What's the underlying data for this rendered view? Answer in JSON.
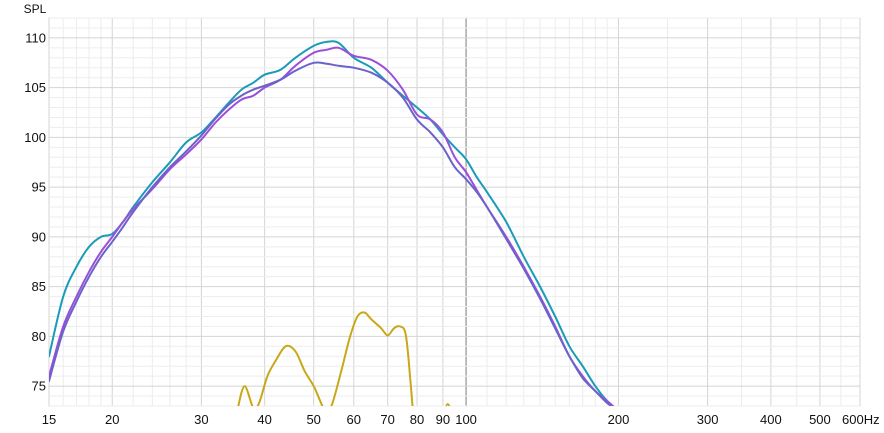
{
  "chart_data": {
    "type": "line",
    "title": "",
    "ylabel": "SPL",
    "xlabel": "",
    "x_scale": "log",
    "xlim": [
      15,
      600
    ],
    "ylim": [
      73,
      112
    ],
    "grid": true,
    "x_ticks": [
      15,
      20,
      30,
      40,
      50,
      60,
      70,
      80,
      90,
      100,
      200,
      300,
      400,
      500,
      600
    ],
    "x_tick_labels": [
      "15",
      "20",
      "30",
      "40",
      "50",
      "60",
      "70",
      "80",
      "90",
      "100",
      "200",
      "300",
      "400",
      "500",
      "600Hz"
    ],
    "y_ticks": [
      75,
      80,
      85,
      90,
      95,
      100,
      105,
      110
    ],
    "y_tick_labels": [
      "75",
      "80",
      "85",
      "90",
      "95",
      "100",
      "105",
      "110"
    ],
    "emphasized_x_gridline": 100,
    "series": [
      {
        "color": "#1a9bb8",
        "x": [
          15,
          16,
          17,
          18,
          19,
          20,
          21,
          22,
          24,
          26,
          28,
          30,
          32,
          34,
          36,
          38,
          40,
          43,
          46,
          50,
          53,
          56,
          60,
          65,
          70,
          75,
          80,
          85,
          90,
          95,
          100,
          105,
          110,
          120,
          130,
          140,
          150,
          160,
          170,
          180,
          190,
          200
        ],
        "y": [
          78,
          84,
          87,
          89,
          90,
          90.3,
          91.5,
          93,
          95.5,
          97.5,
          99.5,
          100.5,
          102,
          103.5,
          104.8,
          105.5,
          106.3,
          106.8,
          108,
          109.2,
          109.6,
          109.5,
          108,
          107,
          105.5,
          104.2,
          103,
          101.8,
          100.3,
          99,
          97.8,
          96,
          94.5,
          91.5,
          88,
          85,
          82,
          79,
          77,
          75,
          73.5,
          72.5
        ]
      },
      {
        "color": "#9b4fd9",
        "x": [
          15,
          16,
          17,
          18,
          19,
          20,
          21,
          22,
          24,
          26,
          28,
          30,
          32,
          34,
          36,
          38,
          40,
          43,
          46,
          50,
          53,
          56,
          60,
          65,
          70,
          75,
          80,
          85,
          90,
          95,
          100,
          105,
          110,
          120,
          130,
          140,
          150,
          160,
          170,
          180,
          190,
          200
        ],
        "y": [
          76,
          81,
          84,
          86.5,
          88.5,
          90,
          91.5,
          92.8,
          94.8,
          96.8,
          98.3,
          99.8,
          101.5,
          102.8,
          103.8,
          104.2,
          105,
          105.8,
          107.2,
          108.5,
          108.8,
          109,
          108.2,
          107.8,
          106.7,
          104.8,
          102.3,
          101.8,
          100.5,
          98,
          96.5,
          94.7,
          93,
          90,
          87,
          84,
          81,
          78,
          76,
          74.5,
          73.5,
          72.5
        ]
      },
      {
        "color": "#6a63c9",
        "x": [
          15,
          16,
          17,
          18,
          19,
          20,
          21,
          22,
          24,
          26,
          28,
          30,
          32,
          34,
          36,
          38,
          40,
          43,
          46,
          50,
          53,
          56,
          60,
          65,
          70,
          75,
          80,
          85,
          90,
          95,
          100,
          105,
          110,
          120,
          130,
          140,
          150,
          160,
          170,
          180,
          190,
          200
        ],
        "y": [
          75.5,
          80.5,
          83.5,
          86,
          88,
          89.5,
          91,
          92.5,
          95,
          97,
          98.6,
          100.2,
          101.9,
          103.3,
          104.2,
          104.8,
          105.2,
          105.8,
          106.7,
          107.5,
          107.4,
          107.2,
          107,
          106.5,
          105.5,
          104,
          101.8,
          100.5,
          99,
          97,
          95.8,
          94.5,
          93,
          89.8,
          86.8,
          83.8,
          80.8,
          78,
          75.8,
          74.5,
          73.3,
          72.5
        ]
      },
      {
        "color": "#c8a818",
        "segments": [
          {
            "x": [
              35.3,
              36.5,
              38,
              39,
              40.5,
              42,
              44,
              46,
              48,
              50,
              51.5,
              52.5,
              53.2
            ],
            "y": [
              72.5,
              75,
              72.8,
              73.3,
              76,
              77.5,
              79,
              78.5,
              76.5,
              75,
              73.5,
              72.6,
              72.5
            ]
          },
          {
            "x": [
              53.8,
              55,
              57,
              59,
              61,
              63,
              65,
              68,
              70,
              72,
              74,
              76,
              77.5,
              78.5
            ],
            "y": [
              72.5,
              74,
              77,
              80,
              82,
              82.4,
              81.7,
              80.8,
              80.1,
              80.8,
              81,
              80.2,
              76,
              72.5
            ]
          },
          {
            "x": [
              90.5,
              92,
              93.5
            ],
            "y": [
              72.5,
              73.2,
              72.5
            ]
          }
        ]
      }
    ]
  }
}
